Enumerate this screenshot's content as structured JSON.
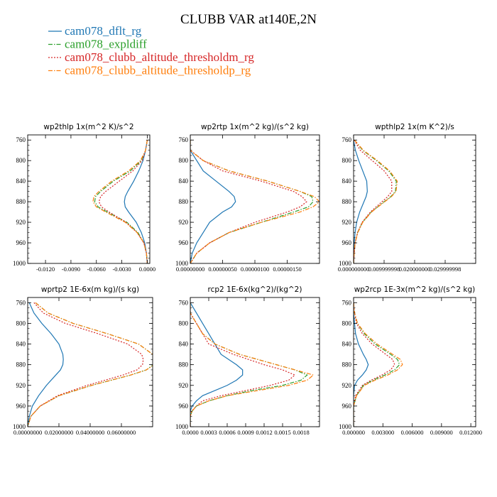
{
  "title": "CLUBB VAR at140E,2N",
  "colors": {
    "dflt": "#1f77b4",
    "expldiff": "#2ca02c",
    "thresholdm": "#d62728",
    "thresholdp": "#ff7f0e"
  },
  "legend": [
    {
      "name": "cam078_dflt_rg",
      "color": "#1f77b4",
      "dash": "solid"
    },
    {
      "name": "cam078_expldiff",
      "color": "#2ca02c",
      "dash": "dashdot"
    },
    {
      "name": "cam078_clubb_altitude_thresholdm_rg",
      "color": "#d62728",
      "dash": "dotted"
    },
    {
      "name": "cam078_clubb_altitude_thresholdp_rg",
      "color": "#ff7f0e",
      "dash": "dashdot"
    }
  ],
  "chart_data": [
    {
      "type": "line",
      "title": "wp2thlp   1x(m^2 K)/s^2",
      "y_axis": {
        "ylim": [
          1000,
          750
        ],
        "ticks": [
          "760",
          "800",
          "840",
          "880",
          "920",
          "960",
          "1000"
        ]
      },
      "x_axis": {
        "xlim": [
          -0.0141,
          0.0003
        ],
        "ticks": [
          "-0.0120",
          "-0.0090",
          "-0.0060",
          "-0.0030",
          "0.0000"
        ]
      },
      "y": [
        760,
        780,
        800,
        820,
        840,
        860,
        870,
        880,
        890,
        900,
        920,
        940,
        960,
        980,
        1000
      ],
      "series": [
        {
          "name": "cam078_dflt_rg",
          "values": [
            0.0,
            -0.0002,
            -0.0005,
            -0.001,
            -0.0016,
            -0.0023,
            -0.0026,
            -0.0027,
            -0.0026,
            -0.0022,
            -0.0013,
            -0.0007,
            -0.0003,
            -0.0001,
            0.0
          ]
        },
        {
          "name": "cam078_expldiff",
          "values": [
            0.0,
            -0.0002,
            -0.0007,
            -0.002,
            -0.004,
            -0.0055,
            -0.0061,
            -0.0062,
            -0.0058,
            -0.0047,
            -0.0024,
            -0.0011,
            -0.0004,
            -0.0001,
            0.0
          ]
        },
        {
          "name": "cam078_clubb_altitude_thresholdm_rg",
          "values": [
            0.0,
            -0.0002,
            -0.0006,
            -0.0017,
            -0.0033,
            -0.0049,
            -0.0055,
            -0.0057,
            -0.0054,
            -0.0045,
            -0.0025,
            -0.0012,
            -0.0004,
            -0.0001,
            0.0
          ]
        },
        {
          "name": "cam078_clubb_altitude_thresholdp_rg",
          "values": [
            0.0,
            -0.0002,
            -0.0008,
            -0.0022,
            -0.0042,
            -0.0057,
            -0.0063,
            -0.0064,
            -0.006,
            -0.0049,
            -0.0026,
            -0.0012,
            -0.0004,
            -0.0001,
            0.0
          ]
        }
      ]
    },
    {
      "type": "line",
      "title": "wp2rtp   1x(m^2 kg)/(s^2 kg)",
      "y_axis": {
        "ylim": [
          1000,
          750
        ],
        "ticks": [
          "760",
          "800",
          "840",
          "880",
          "920",
          "960",
          "1000"
        ]
      },
      "x_axis": {
        "xlim": [
          0,
          2e-06
        ],
        "ticks": [
          "0.00000000",
          "0.00000050",
          "0.00000100",
          "0.00000150"
        ]
      },
      "x_tick_values": [
        0,
        5e-07,
        1e-06,
        1.5e-06
      ],
      "y": [
        760,
        780,
        800,
        820,
        840,
        860,
        870,
        880,
        890,
        900,
        920,
        940,
        960,
        980,
        1000
      ],
      "series": [
        {
          "name": "cam078_dflt_rg",
          "values": [
            0.0,
            0.0,
            1e-07,
            2e-07,
            4e-07,
            6e-07,
            6.8e-07,
            7e-07,
            6.4e-07,
            5e-07,
            3e-07,
            2e-07,
            1e-07,
            3e-08,
            0.0
          ]
        },
        {
          "name": "cam078_expldiff",
          "values": [
            0.0,
            0.0,
            2e-07,
            6e-07,
            1.2e-06,
            1.7e-06,
            1.88e-06,
            1.9e-06,
            1.83e-06,
            1.6e-06,
            1.1e-06,
            6e-07,
            3e-07,
            1e-07,
            0.0
          ]
        },
        {
          "name": "cam078_clubb_altitude_thresholdm_rg",
          "values": [
            0.0,
            0.0,
            2e-07,
            5e-07,
            1.1e-06,
            1.6e-06,
            1.73e-06,
            1.8e-06,
            1.7e-06,
            1.5e-06,
            1e-06,
            6e-07,
            3e-07,
            1e-07,
            0.0
          ]
        },
        {
          "name": "cam078_clubb_altitude_thresholdp_rg",
          "values": [
            0.0,
            0.0,
            2e-07,
            6e-07,
            1.2e-06,
            1.7e-06,
            1.92e-06,
            2e-06,
            1.9e-06,
            1.7e-06,
            1.1e-06,
            6e-07,
            3e-07,
            1e-07,
            0.0
          ]
        }
      ]
    },
    {
      "type": "line",
      "title": "wpthlp2   1x(m K^2)/s",
      "y_axis": {
        "ylim": [
          1000,
          750
        ],
        "ticks": [
          "760",
          "800",
          "840",
          "880",
          "920",
          "960",
          "1000"
        ]
      },
      "x_axis": {
        "xlim": [
          0,
          0.04
        ],
        "ticks": [
          "0.000000000",
          "0.009999998",
          "0.020000000",
          "0.029999998"
        ]
      },
      "x_tick_values": [
        0,
        0.01,
        0.02,
        0.03
      ],
      "y": [
        760,
        780,
        800,
        820,
        840,
        860,
        870,
        880,
        890,
        900,
        920,
        940,
        960,
        980,
        1000
      ],
      "series": [
        {
          "name": "cam078_dflt_rg",
          "values": [
            0.0,
            0.0006,
            0.0017,
            0.003,
            0.0043,
            0.0045,
            0.0041,
            0.0034,
            0.0027,
            0.002,
            0.001,
            0.0005,
            0.0002,
            0.0001,
            0.0
          ]
        },
        {
          "name": "cam078_expldiff",
          "values": [
            0.0003,
            0.003,
            0.0075,
            0.0115,
            0.014,
            0.0137,
            0.0122,
            0.01,
            0.0079,
            0.0058,
            0.0029,
            0.0013,
            0.0005,
            0.0002,
            0.0
          ]
        },
        {
          "name": "cam078_clubb_altitude_thresholdm_rg",
          "values": [
            0.0002,
            0.0022,
            0.0061,
            0.01,
            0.0125,
            0.0125,
            0.0112,
            0.0093,
            0.0074,
            0.0055,
            0.0028,
            0.0013,
            0.0005,
            0.0002,
            0.0
          ]
        },
        {
          "name": "cam078_clubb_altitude_thresholdp_rg",
          "values": [
            0.0003,
            0.0032,
            0.0078,
            0.0118,
            0.0143,
            0.0139,
            0.0124,
            0.0102,
            0.008,
            0.0059,
            0.003,
            0.0014,
            0.0005,
            0.0002,
            0.0
          ]
        }
      ]
    },
    {
      "type": "line",
      "title": "wprtp2   1E-6x(m kg)/(s kg)",
      "y_axis": {
        "ylim": [
          1000,
          750
        ],
        "ticks": [
          "760",
          "800",
          "840",
          "880",
          "920",
          "960",
          "1000"
        ]
      },
      "x_axis": {
        "xlim": [
          0,
          0.08
        ],
        "ticks": [
          "0.00000000",
          "0.02000000",
          "0.04000000",
          "0.06000000"
        ]
      },
      "x_tick_values": [
        0,
        0.02,
        0.04,
        0.06
      ],
      "y": [
        760,
        780,
        800,
        820,
        840,
        860,
        870,
        880,
        890,
        900,
        920,
        940,
        960,
        980,
        1000
      ],
      "series": [
        {
          "name": "cam078_dflt_rg",
          "values": [
            0.001,
            0.004,
            0.009,
            0.015,
            0.02,
            0.0225,
            0.0228,
            0.0225,
            0.021,
            0.018,
            0.012,
            0.007,
            0.003,
            0.001,
            0.0
          ]
        },
        {
          "name": "cam078_expldiff",
          "values": [
            0.005,
            0.013,
            0.029,
            0.051,
            0.071,
            0.08,
            0.0812,
            0.0805,
            0.076,
            0.066,
            0.041,
            0.02,
            0.008,
            0.002,
            0.0
          ]
        },
        {
          "name": "cam078_clubb_altitude_thresholdm_rg",
          "values": [
            0.004,
            0.01,
            0.024,
            0.045,
            0.064,
            0.073,
            0.074,
            0.0735,
            0.07,
            0.061,
            0.038,
            0.019,
            0.008,
            0.002,
            0.0
          ]
        },
        {
          "name": "cam078_clubb_altitude_thresholdp_rg",
          "values": [
            0.005,
            0.013,
            0.029,
            0.051,
            0.071,
            0.08,
            0.0815,
            0.0808,
            0.076,
            0.066,
            0.041,
            0.02,
            0.008,
            0.002,
            0.0
          ]
        }
      ]
    },
    {
      "type": "line",
      "title": "rcp2   1E-6x(kg^2)/(kg^2)",
      "y_axis": {
        "ylim": [
          1000,
          750
        ],
        "ticks": [
          "760",
          "800",
          "840",
          "880",
          "920",
          "960",
          "1000"
        ]
      },
      "x_axis": {
        "xlim": [
          0,
          0.0021
        ],
        "ticks": [
          "0.0000",
          "0.0003",
          "0.0006",
          "0.0009",
          "0.0012",
          "0.0015",
          "0.0018"
        ]
      },
      "x_tick_values": [
        0,
        0.0003,
        0.0006,
        0.0009,
        0.0012,
        0.0015,
        0.0018
      ],
      "y": [
        760,
        780,
        800,
        820,
        840,
        860,
        880,
        890,
        900,
        910,
        920,
        930,
        940,
        950,
        960,
        970,
        980,
        1000
      ],
      "series": [
        {
          "name": "cam078_dflt_rg",
          "values": [
            0.0,
            0.0001,
            0.0002,
            0.0003,
            0.0004,
            0.0005,
            0.00075,
            0.00085,
            0.00085,
            0.00075,
            0.0006,
            0.0004,
            0.0002,
            0.0001,
            3e-05,
            0.0,
            0.0,
            0.0
          ]
        },
        {
          "name": "cam078_expldiff",
          "values": [
            0.0,
            0.0,
            0.0001,
            0.0002,
            0.0004,
            0.0008,
            0.0014,
            0.0017,
            0.0019,
            0.0018,
            0.0015,
            0.001,
            0.0006,
            0.0003,
            0.0001,
            3e-05,
            0.0,
            0.0
          ]
        },
        {
          "name": "cam078_clubb_altitude_thresholdm_rg",
          "values": [
            0.0,
            0.0,
            0.0001,
            0.0002,
            0.0003,
            0.0007,
            0.0012,
            0.0015,
            0.0017,
            0.0016,
            0.0013,
            0.0009,
            0.0005,
            0.0002,
            0.0001,
            2e-05,
            0.0,
            0.0
          ]
        },
        {
          "name": "cam078_clubb_altitude_thresholdp_rg",
          "values": [
            0.0,
            0.0,
            0.0001,
            0.0002,
            0.0004,
            0.0008,
            0.0014,
            0.0017,
            0.002,
            0.0019,
            0.0016,
            0.0011,
            0.0006,
            0.0003,
            0.0001,
            3e-05,
            0.0,
            0.0
          ]
        }
      ]
    },
    {
      "type": "line",
      "title": "wp2rcp   1E-3x(m^2 kg)/(s^2 kg)",
      "y_axis": {
        "ylim": [
          1000,
          750
        ],
        "ticks": [
          "760",
          "800",
          "840",
          "880",
          "920",
          "960",
          "1000"
        ]
      },
      "x_axis": {
        "xlim": [
          0,
          0.0125
        ],
        "ticks": [
          "0.000000",
          "0.003000",
          "0.006000",
          "0.009000",
          "0.012000"
        ]
      },
      "x_tick_values": [
        0,
        0.003,
        0.006,
        0.009,
        0.012
      ],
      "y": [
        760,
        780,
        800,
        820,
        840,
        860,
        870,
        880,
        890,
        900,
        910,
        920,
        940,
        960,
        980,
        1000
      ],
      "series": [
        {
          "name": "cam078_dflt_rg",
          "values": [
            0.0,
            0.0,
            0.0001,
            0.0002,
            0.0005,
            0.001,
            0.0013,
            0.0015,
            0.0013,
            0.0009,
            0.0004,
            0.0001,
            0.0,
            0.0,
            0.0,
            0.0
          ]
        },
        {
          "name": "cam078_expldiff",
          "values": [
            0.0,
            0.0001,
            0.0004,
            0.0011,
            0.0022,
            0.0038,
            0.0045,
            0.0047,
            0.0042,
            0.0032,
            0.002,
            0.001,
            0.0003,
            0.0,
            0.0,
            0.0
          ]
        },
        {
          "name": "cam078_clubb_altitude_thresholdm_rg",
          "values": [
            0.0,
            0.0001,
            0.0003,
            0.0009,
            0.0019,
            0.0033,
            0.004,
            0.0042,
            0.0038,
            0.0029,
            0.0018,
            0.0009,
            0.0002,
            0.0,
            0.0,
            0.0
          ]
        },
        {
          "name": "cam078_clubb_altitude_thresholdp_rg",
          "values": [
            0.0,
            0.0001,
            0.0004,
            0.0012,
            0.0024,
            0.004,
            0.0048,
            0.005,
            0.0045,
            0.0035,
            0.0022,
            0.0011,
            0.0003,
            0.0,
            0.0,
            0.0
          ]
        }
      ]
    }
  ]
}
